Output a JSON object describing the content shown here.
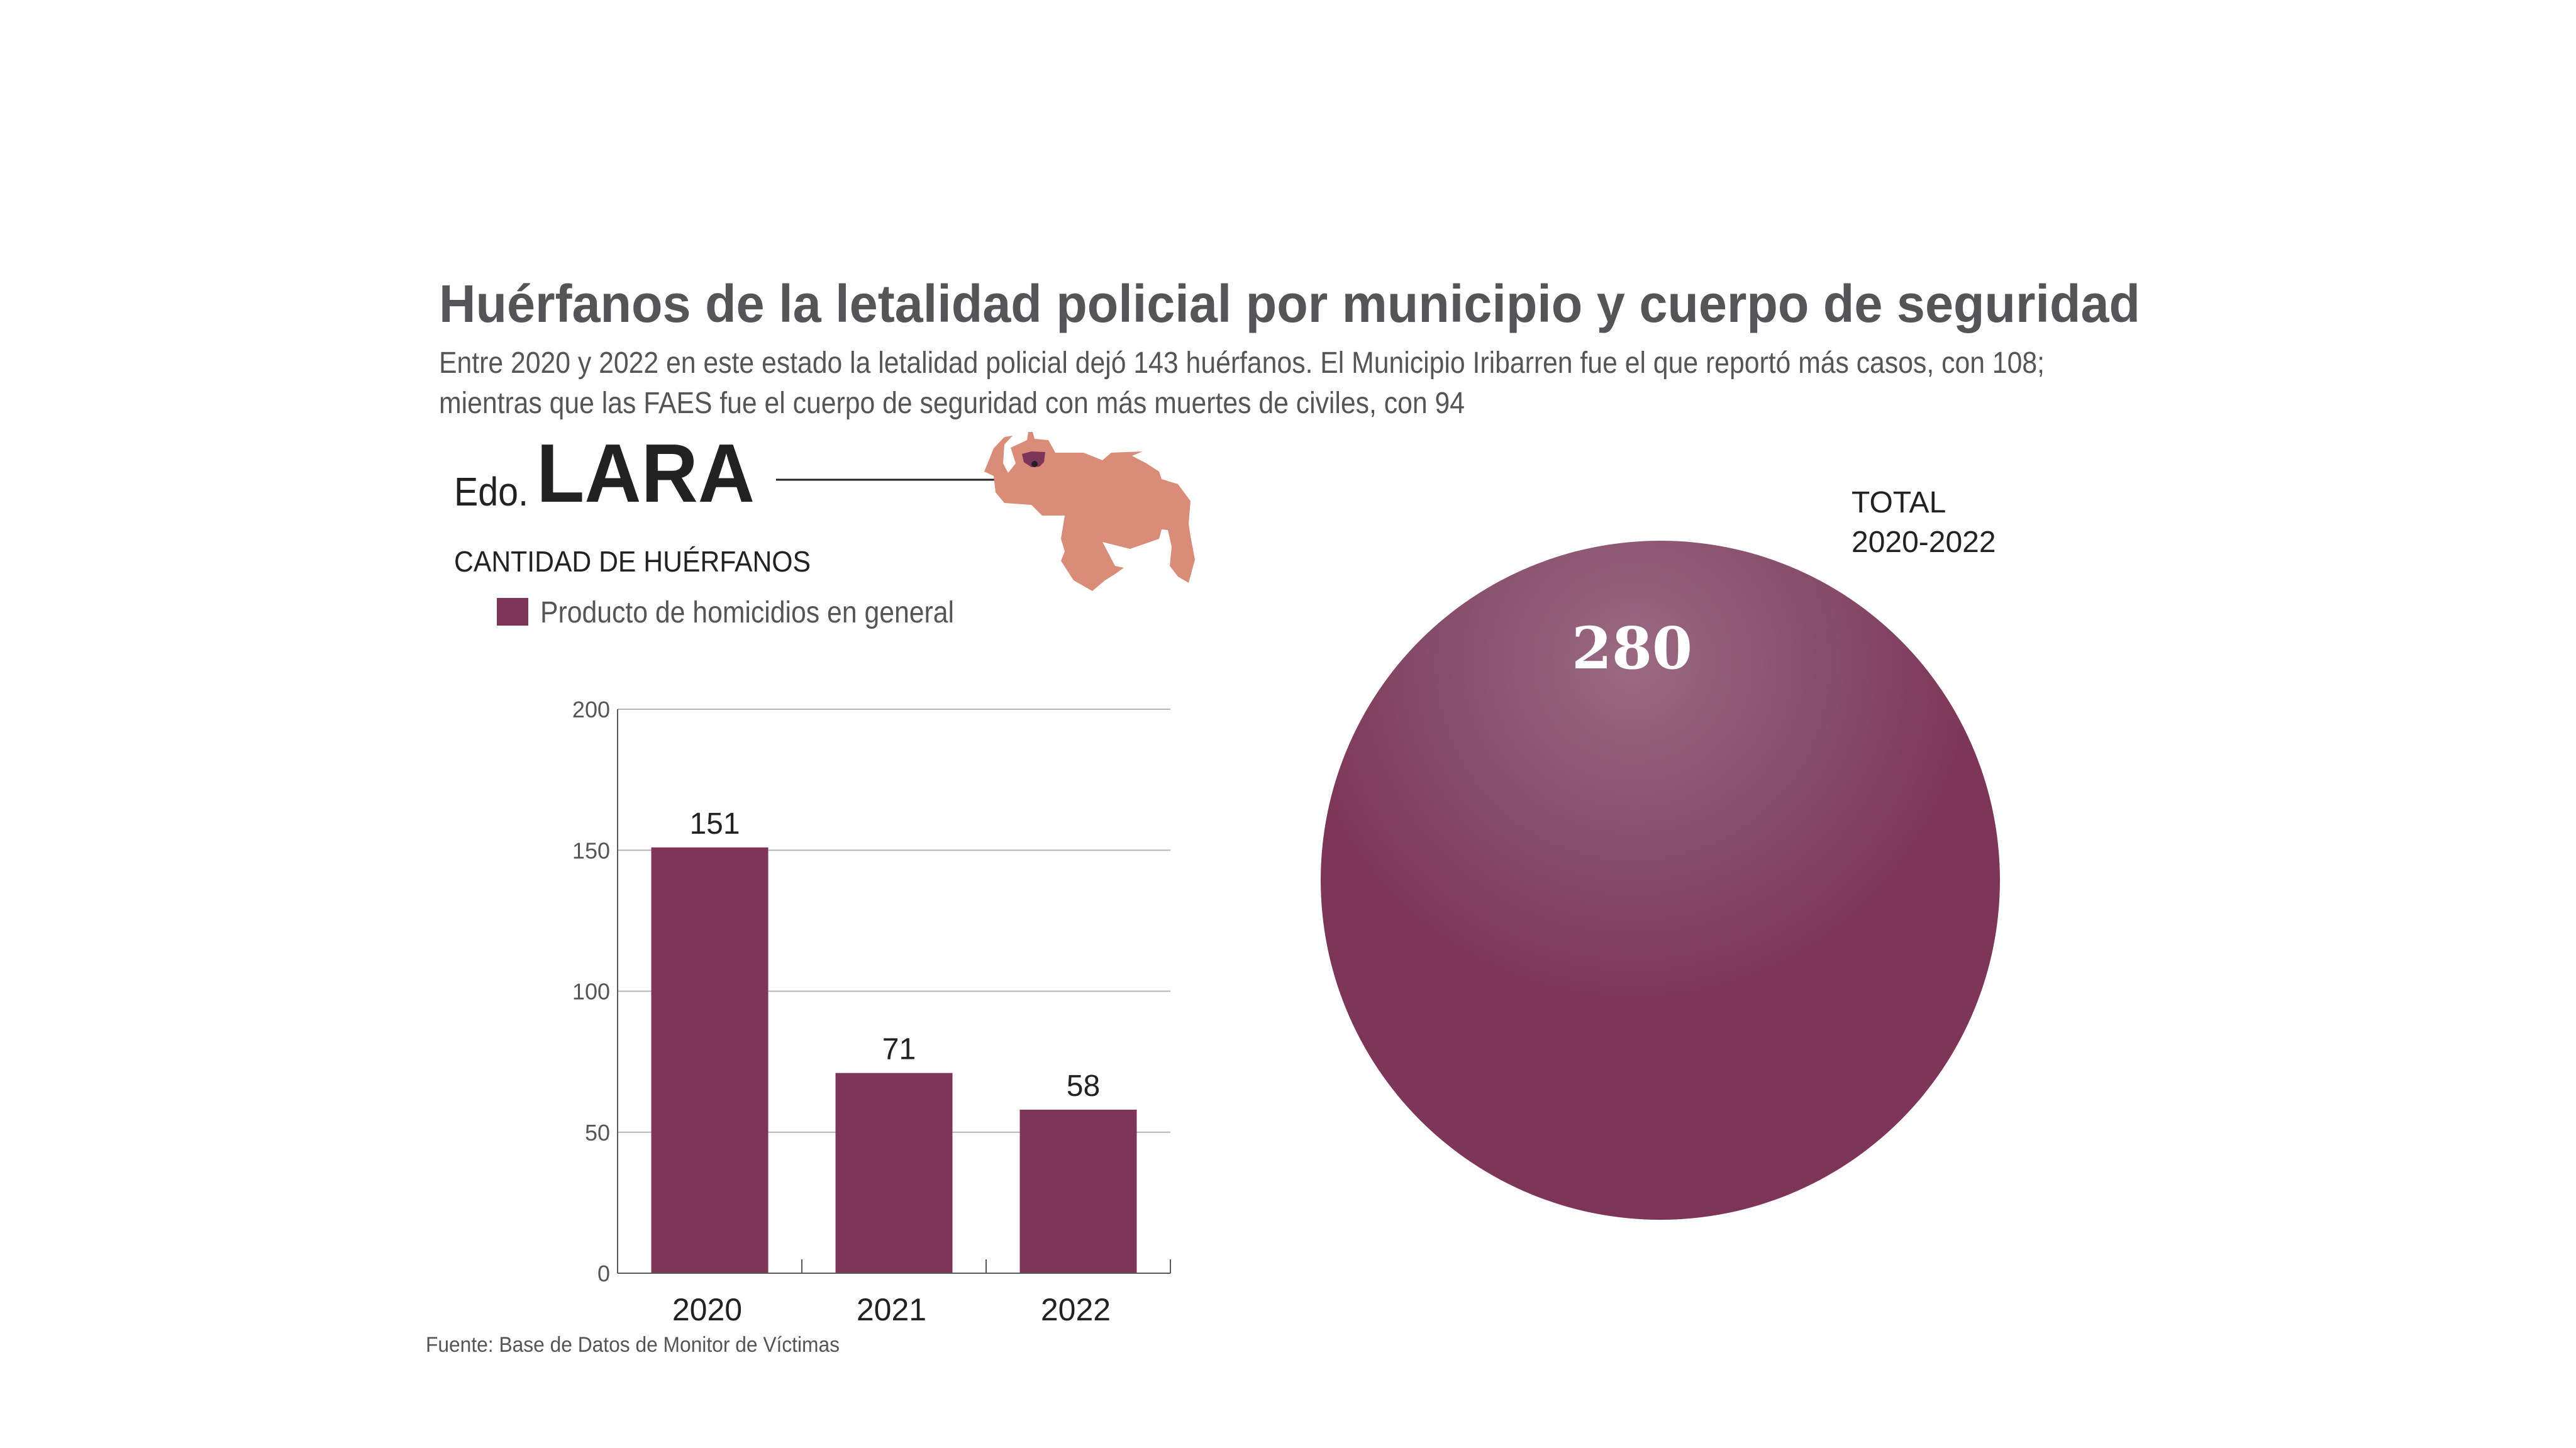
{
  "header": {
    "title": "Huérfanos de la letalidad policial por municipio y cuerpo de seguridad",
    "subtitle_line1": "Entre 2020 y 2022 en este estado la letalidad policial dejó 143 huérfanos. El Municipio Iribarren fue el que reportó más casos, con 108;",
    "subtitle_line2": "mientras que las FAES fue el cuerpo de seguridad con más muertes de civiles, con 94"
  },
  "state": {
    "prefix": "Edo.",
    "name": "LARA",
    "map_color": "#d98c78",
    "highlight_color": "#7d3659"
  },
  "section_label": "CANTIDAD DE HUÉRFANOS",
  "source": "Fuente: Base de Datos de Monitor de Víctimas",
  "colors": {
    "bar": "#7d3659",
    "title": "#555558",
    "text": "#222222"
  },
  "chart_data": [
    {
      "type": "bar",
      "categories": [
        "2020",
        "2021",
        "2022"
      ],
      "series": [
        {
          "name": "Producto de homicidios en general",
          "values": [
            151,
            71,
            58
          ]
        }
      ],
      "data_labels": [
        "151",
        "71",
        "58"
      ],
      "ylim": [
        0,
        200
      ],
      "yticks": [
        "0",
        "50",
        "100",
        "150",
        "200"
      ],
      "grid": true,
      "legend": "top-left"
    },
    {
      "type": "bubble",
      "label_line1": "TOTAL",
      "label_line2": "2020-2022",
      "value": 280,
      "value_label": "280"
    }
  ]
}
